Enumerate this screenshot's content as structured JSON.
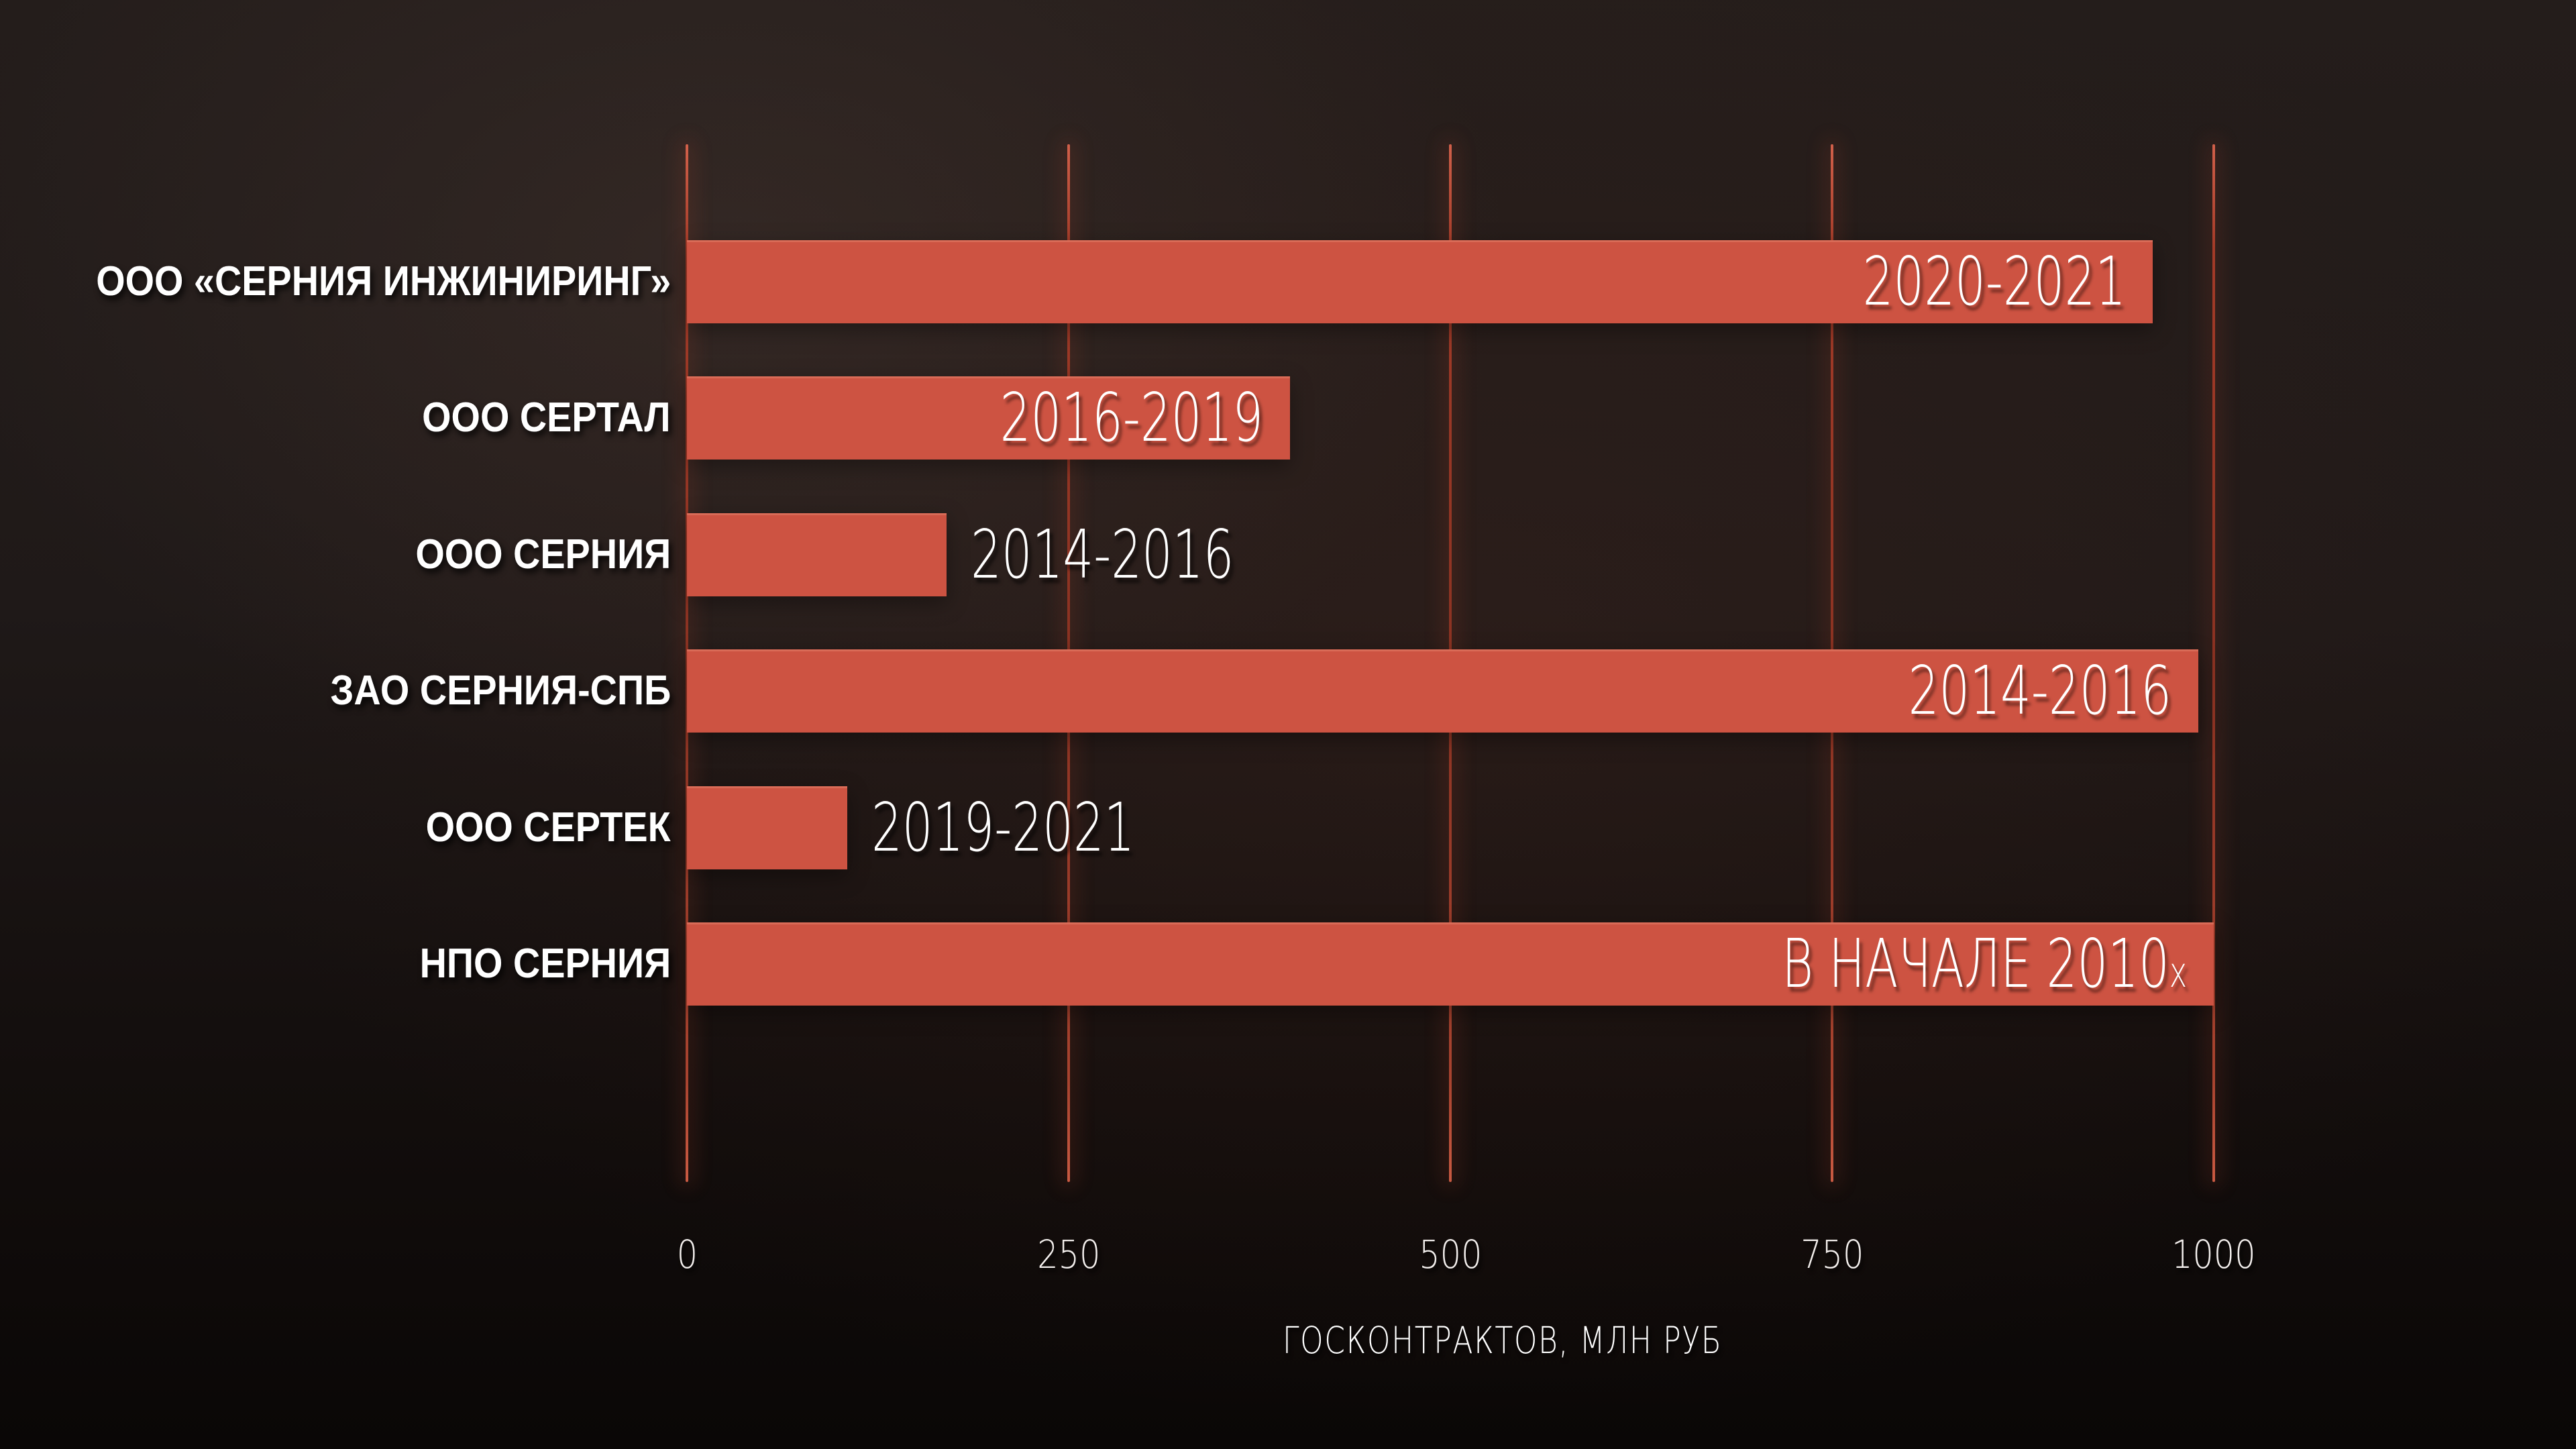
{
  "chart_data": {
    "type": "bar",
    "orientation": "horizontal",
    "title": "",
    "xlabel": "ГОСКОНТРАКТОВ, МЛН РУБ",
    "ylabel": "",
    "xlim": [
      0,
      1000
    ],
    "x_ticks": [
      0,
      250,
      500,
      750,
      1000
    ],
    "grid": true,
    "legend": false,
    "categories": [
      "ООО «СЕРНИЯ ИНЖИНИРИНГ»",
      "ООО СЕРТАЛ",
      "ООО СЕРНИЯ",
      "ЗАО СЕРНИЯ-СПБ",
      "ООО СЕРТЕК",
      "НПО СЕРНИЯ"
    ],
    "values": [
      960,
      395,
      170,
      990,
      105,
      1000
    ],
    "bar_labels": [
      "2020-2021",
      "2016-2019",
      "2014-2016",
      "2014-2016",
      "2019-2021",
      "В НАЧАЛЕ 2010х"
    ],
    "colors": {
      "bar": "#cd5342",
      "gridline": "#a8432f",
      "background_top": "#241d1b",
      "background_bottom": "#0a0706",
      "text": "#ffffff"
    }
  },
  "bars": [
    {
      "category": "ООО «СЕРНИЯ ИНЖИНИРИНГ»",
      "label": "2020-2021",
      "label_suffix": "",
      "value": 960,
      "placement": "inside"
    },
    {
      "category": "ООО СЕРТАЛ",
      "label": "2016-2019",
      "label_suffix": "",
      "value": 395,
      "placement": "inside"
    },
    {
      "category": "ООО СЕРНИЯ",
      "label": "2014-2016",
      "label_suffix": "",
      "value": 170,
      "placement": "outside"
    },
    {
      "category": "ЗАО СЕРНИЯ-СПБ",
      "label": "2014-2016",
      "label_suffix": "",
      "value": 990,
      "placement": "inside"
    },
    {
      "category": "ООО СЕРТЕК",
      "label": "2019-2021",
      "label_suffix": "",
      "value": 105,
      "placement": "outside"
    },
    {
      "category": "НПО СЕРНИЯ",
      "label": "В НАЧАЛЕ 2010",
      "label_suffix": "х",
      "value": 1000,
      "placement": "inside"
    }
  ],
  "axis": {
    "ticks": [
      "0",
      "250",
      "500",
      "750",
      "1000"
    ],
    "title": "ГОСКОНТРАКТОВ, МЛН РУБ"
  }
}
